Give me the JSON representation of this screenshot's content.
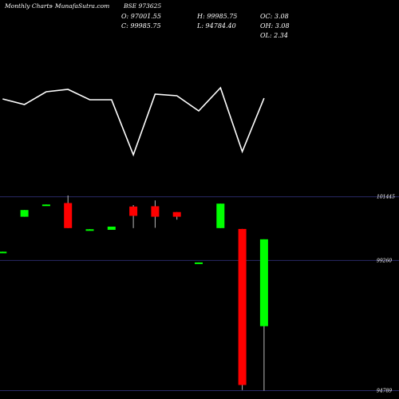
{
  "header": {
    "left": "Monthly Charts",
    "source": "- MunafaSutra.com",
    "symbol": "BSE 973625"
  },
  "ohlc": {
    "o": "O: 97001.55",
    "c": "C: 99985.75",
    "h": "H: 99985.75",
    "l": "L: 94784.40",
    "oc": "OC: 3.08",
    "oh": "OH: 3.08",
    "ol": "OL: 2.34"
  },
  "chart_data": [
    {
      "type": "line",
      "x": [
        1,
        2,
        3,
        4,
        5,
        6,
        7,
        8,
        9,
        10,
        11,
        12,
        13
      ],
      "y": [
        124,
        131,
        115,
        112,
        125,
        125,
        194,
        118,
        120,
        139,
        110,
        190,
        123
      ],
      "ylim": [
        90,
        210
      ],
      "color": "#ffffff",
      "grid": false
    },
    {
      "type": "candlestick",
      "y_ticks": [
        {
          "value": 101445,
          "label": "101445"
        },
        {
          "value": 99260,
          "label": "99260"
        },
        {
          "value": 94789,
          "label": "94789"
        }
      ],
      "ylim": [
        94500,
        101900
      ],
      "up_color": "#00ff00",
      "down_color": "#ff0000",
      "candles": [
        {
          "x": 1,
          "open": 99530,
          "close": 99560,
          "high": 99560,
          "low": 99530
        },
        {
          "x": 2,
          "open": 100760,
          "close": 100990,
          "high": 100990,
          "low": 100760
        },
        {
          "x": 3,
          "open": 101160,
          "close": 101180,
          "high": 101180,
          "low": 101160
        },
        {
          "x": 4,
          "open": 101230,
          "close": 100370,
          "high": 101490,
          "low": 100370
        },
        {
          "x": 5,
          "open": 100310,
          "close": 100330,
          "high": 100330,
          "low": 100310
        },
        {
          "x": 6,
          "open": 100310,
          "close": 100420,
          "high": 100420,
          "low": 100310
        },
        {
          "x": 7,
          "open": 101110,
          "close": 100790,
          "high": 101160,
          "low": 100370
        },
        {
          "x": 8,
          "open": 101120,
          "close": 100760,
          "high": 101320,
          "low": 100380
        },
        {
          "x": 9,
          "open": 100920,
          "close": 100760,
          "high": 100920,
          "low": 100660
        },
        {
          "x": 10,
          "open": 99170,
          "close": 99190,
          "high": 99190,
          "low": 99170
        },
        {
          "x": 11,
          "open": 100370,
          "close": 101210,
          "high": 101210,
          "low": 100370
        },
        {
          "x": 12,
          "open": 100340,
          "close": 94980,
          "high": 100340,
          "low": 94810
        },
        {
          "x": 13,
          "open": 97001.55,
          "close": 99985.75,
          "high": 99985.75,
          "low": 94784.4
        }
      ]
    }
  ]
}
